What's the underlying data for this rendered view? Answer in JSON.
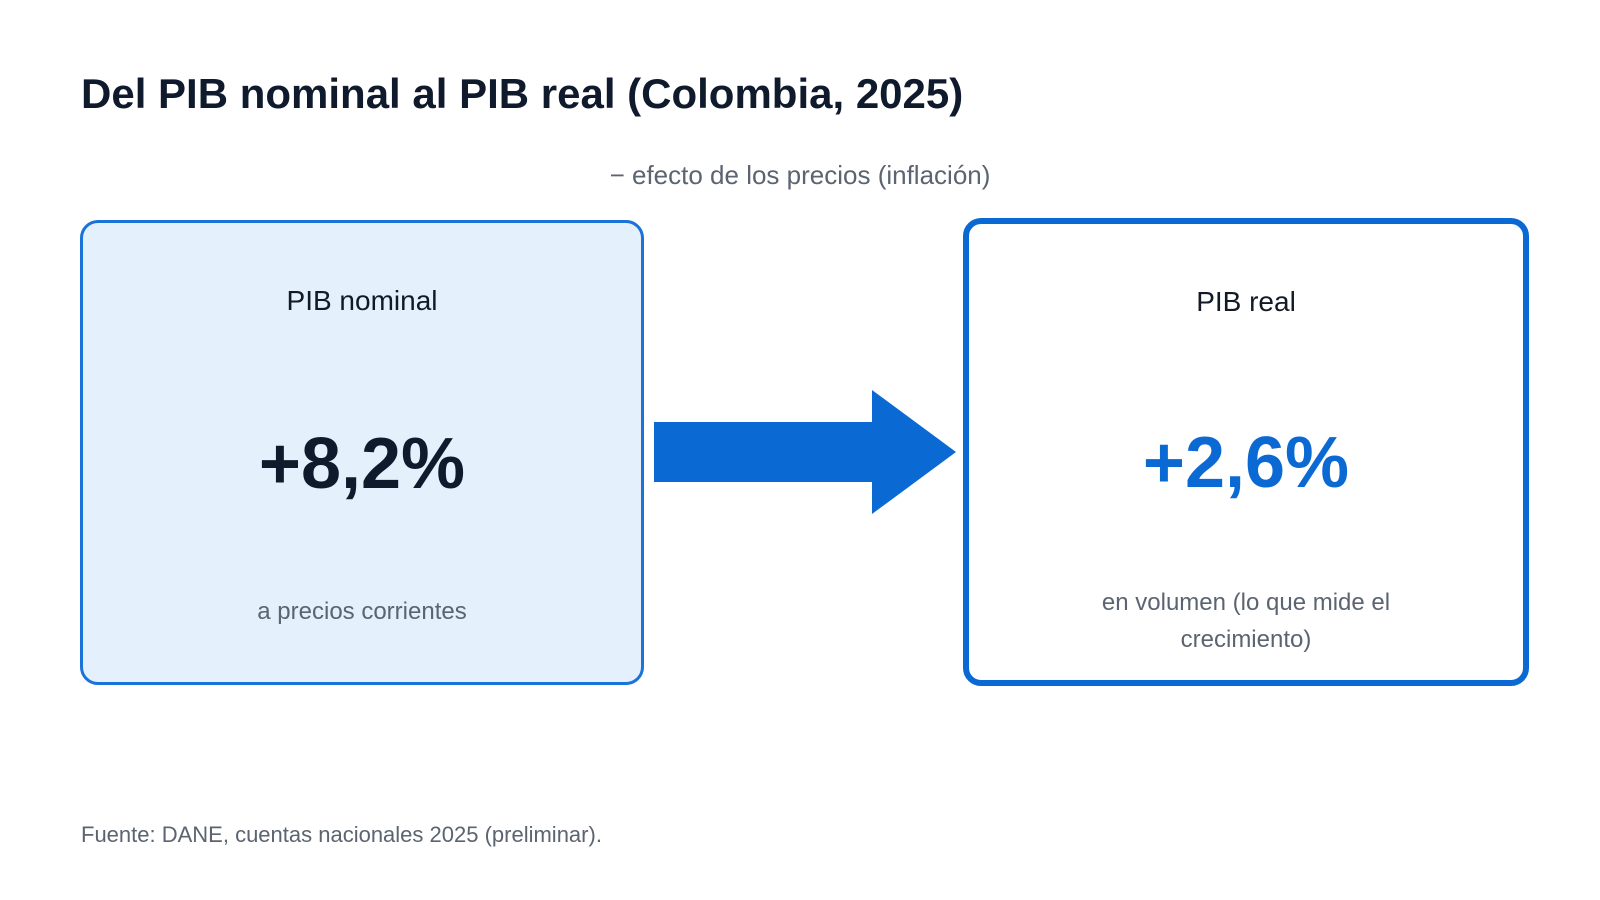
{
  "title": "Del PIB nominal al PIB real (Colombia, 2025)",
  "transition": {
    "caption": "− efecto de los precios (inflación)"
  },
  "nominal": {
    "label": "PIB nominal",
    "value": "+8,2%",
    "note": "a precios corrientes"
  },
  "real": {
    "label": "PIB real",
    "value": "+2,6%",
    "note": "en volumen (lo que mide el crecimiento)"
  },
  "source": "Fuente: DANE, cuentas nacionales 2025 (preliminar).",
  "colors": {
    "accent": "#0b69d4",
    "nominal_fill": "#e4f0fc",
    "text_dark": "#0f1b2d",
    "text_muted": "#5b6470"
  }
}
